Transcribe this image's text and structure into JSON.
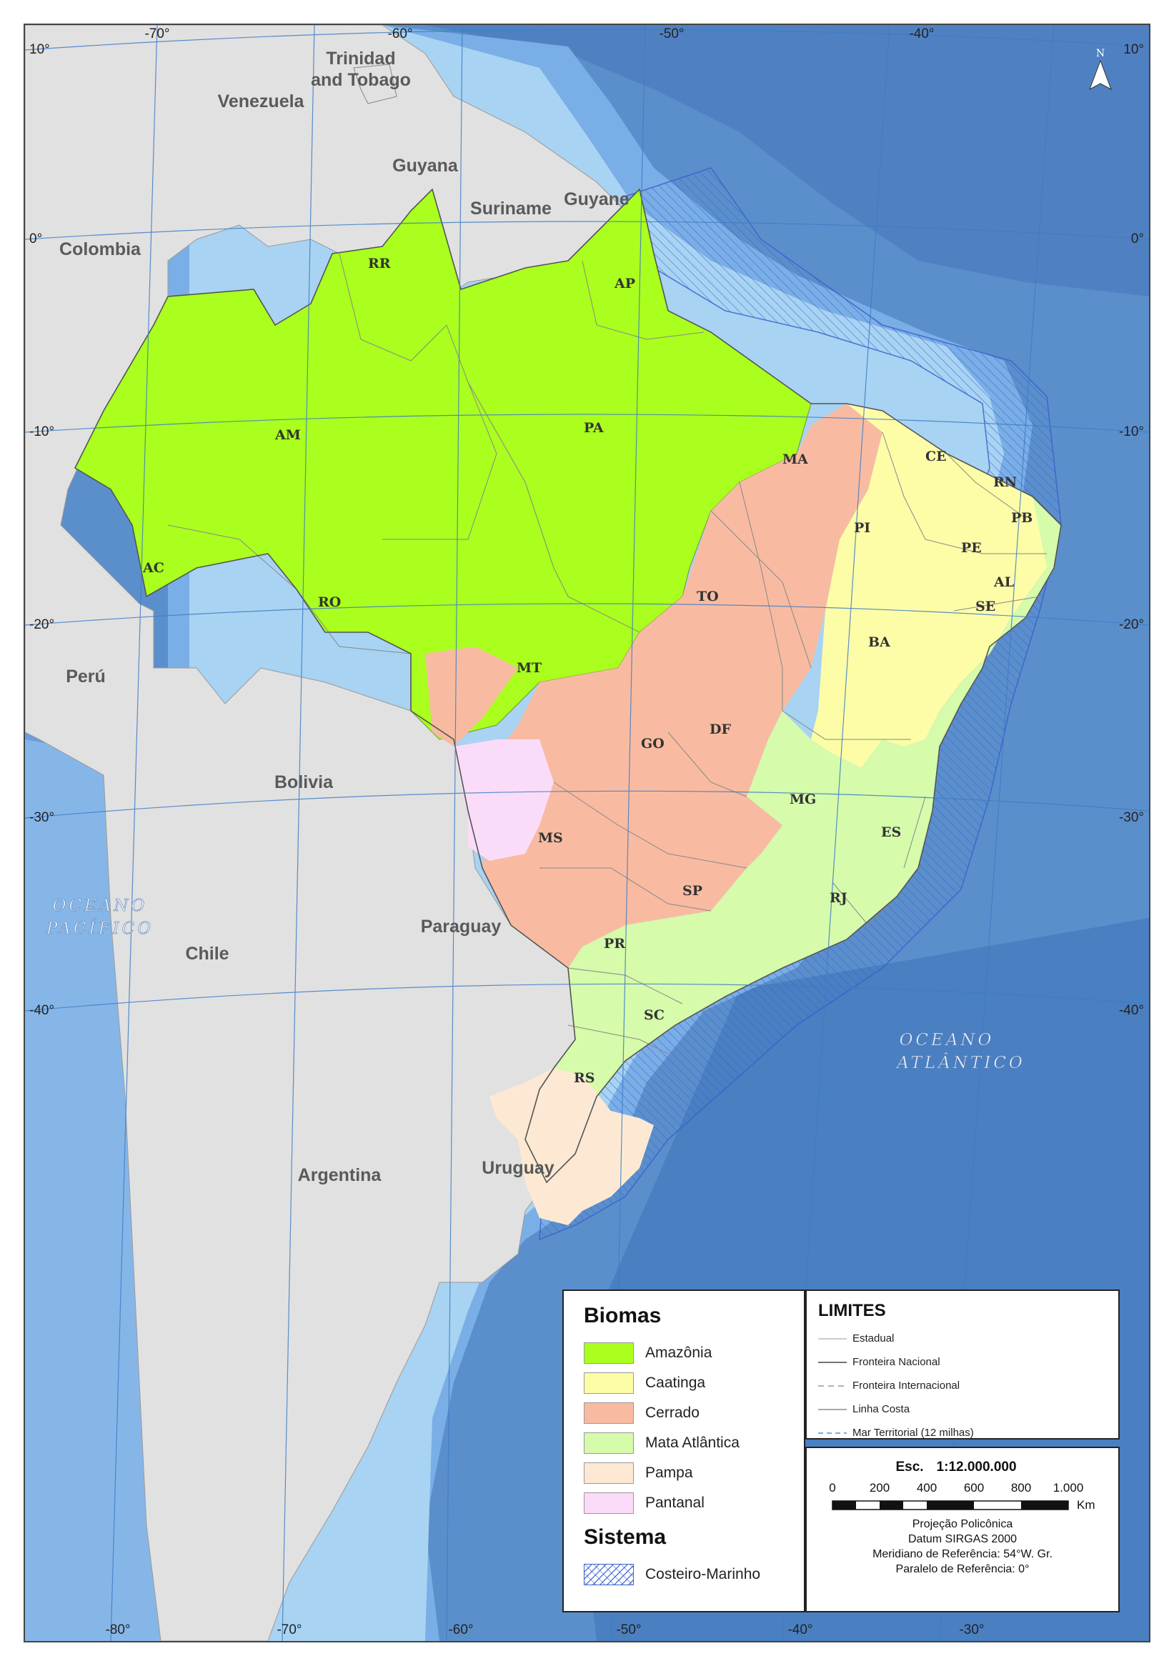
{
  "map": {
    "countries": [
      {
        "name": "Trinidad",
        "key": "trinidad"
      },
      {
        "name": "and Tobago",
        "key": "tobago"
      },
      {
        "name": "Venezuela",
        "key": "venezuela"
      },
      {
        "name": "Guyana",
        "key": "guyana"
      },
      {
        "name": "Suriname",
        "key": "suriname"
      },
      {
        "name": "Guyane",
        "key": "guyane"
      },
      {
        "name": "Colombia",
        "key": "colombia"
      },
      {
        "name": "Perú",
        "key": "peru"
      },
      {
        "name": "Bolivia",
        "key": "bolivia"
      },
      {
        "name": "Chile",
        "key": "chile"
      },
      {
        "name": "Paraguay",
        "key": "paraguay"
      },
      {
        "name": "Argentina",
        "key": "argentina"
      },
      {
        "name": "Uruguay",
        "key": "uruguay"
      }
    ],
    "states": [
      "RR",
      "AP",
      "AM",
      "PA",
      "MA",
      "CE",
      "RN",
      "PB",
      "PI",
      "PE",
      "AC",
      "AL",
      "SE",
      "RO",
      "TO",
      "BA",
      "MT",
      "DF",
      "GO",
      "MG",
      "MS",
      "ES",
      "SP",
      "RJ",
      "PR",
      "SC",
      "RS"
    ],
    "oceans": {
      "pacific_line1": "OCEANO",
      "pacific_line2": "PACÍFICO",
      "atlantic_line1": "OCEANO",
      "atlantic_line2": "ATLÂNTICO"
    },
    "north_arrow_label": "N",
    "graticule_top": [
      "-70°",
      "-60°",
      "-50°",
      "-40°"
    ],
    "graticule_bottom": [
      "-80°",
      "-70°",
      "-60°",
      "-50°",
      "-40°",
      "-30°"
    ],
    "graticule_left": [
      "10°",
      "0°",
      "-10°",
      "-20°",
      "-30°",
      "-40°"
    ],
    "graticule_right": [
      "10°",
      "0°",
      "-10°",
      "-20°",
      "-30°",
      "-40°"
    ]
  },
  "legend": {
    "biomas_title": "Biomas",
    "biomas": [
      {
        "label": "Amazônia",
        "color": "#aaff1e"
      },
      {
        "label": "Caatinga",
        "color": "#fdfda8"
      },
      {
        "label": "Cerrado",
        "color": "#f8bba1"
      },
      {
        "label": "Mata Atlântica",
        "color": "#d5fbab"
      },
      {
        "label": "Pampa",
        "color": "#fde9d3"
      },
      {
        "label": "Pantanal",
        "color": "#fbdcf8"
      }
    ],
    "sistema_title": "Sistema",
    "sistema": [
      {
        "label": "Costeiro-Marinho",
        "color": "#3a5fcd"
      }
    ]
  },
  "limites": {
    "title": "LIMITES",
    "items": [
      {
        "label": "Estadual",
        "style": "thin-gray"
      },
      {
        "label": "Fronteira Nacional",
        "style": "dark"
      },
      {
        "label": "Fronteira Internacional",
        "style": "dashed-gray"
      },
      {
        "label": "Linha Costa",
        "style": "gray"
      },
      {
        "label": "Mar Territorial (12 milhas)",
        "style": "dashed-blue"
      }
    ]
  },
  "scale": {
    "esc_label": "Esc.",
    "ratio": "1:12.000.000",
    "ticks": [
      "0",
      "200",
      "400",
      "600",
      "800",
      "1.000"
    ],
    "unit": "Km",
    "projection": "Projeção Policônica",
    "datum": "Datum SIRGAS 2000",
    "meridian": "Meridiano de Referência: 54°W. Gr.",
    "parallel": "Paralelo de Referência: 0°"
  },
  "colors": {
    "ocean_deep": "#4f87c8",
    "ocean_mid": "#6a9ede",
    "ocean_shelf": "#a8d3f2",
    "land": "#e1e1e1",
    "marine_hatch": "#3a5fcd"
  }
}
